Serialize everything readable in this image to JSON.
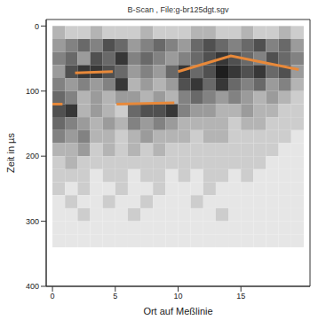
{
  "chart_data": {
    "type": "heatmap",
    "title": "B-Scan , File:g-br125dgt.sgv",
    "x_label": "Ort auf Meßlinie",
    "y_label": "Zeit in µs",
    "xlim": [
      -0.5,
      20.5
    ],
    "xticks": [
      0,
      5,
      10,
      15
    ],
    "ylim": [
      -10,
      400
    ],
    "yticks": [
      0,
      100,
      200,
      300,
      400
    ],
    "grid": false,
    "heatmap": {
      "x_edges": [
        0,
        1,
        2,
        3,
        4,
        5,
        6,
        7,
        8,
        9,
        10,
        11,
        12,
        13,
        14,
        15,
        16,
        17,
        18,
        19,
        20
      ],
      "y_edges": [
        0,
        20,
        40,
        60,
        80,
        100,
        120,
        140,
        160,
        180,
        200,
        220,
        240,
        260,
        280,
        300,
        320,
        340
      ],
      "values": [
        [
          3,
          2,
          2,
          3,
          2,
          2,
          2,
          3,
          2,
          2,
          2,
          3,
          3,
          2,
          2,
          3,
          2,
          2,
          3,
          2
        ],
        [
          4,
          5,
          6,
          5,
          7,
          6,
          4,
          5,
          6,
          5,
          4,
          6,
          7,
          6,
          5,
          6,
          7,
          5,
          6,
          4
        ],
        [
          5,
          6,
          4,
          7,
          6,
          8,
          5,
          6,
          5,
          4,
          5,
          6,
          7,
          8,
          7,
          6,
          5,
          7,
          6,
          5
        ],
        [
          4,
          7,
          8,
          8,
          7,
          6,
          4,
          5,
          4,
          6,
          8,
          6,
          7,
          9,
          8,
          7,
          8,
          6,
          7,
          4
        ],
        [
          5,
          4,
          5,
          4,
          5,
          8,
          3,
          4,
          3,
          4,
          7,
          8,
          6,
          8,
          6,
          5,
          6,
          4,
          5,
          3
        ],
        [
          6,
          5,
          3,
          4,
          3,
          4,
          4,
          3,
          4,
          3,
          5,
          6,
          5,
          4,
          5,
          4,
          3,
          4,
          3,
          2
        ],
        [
          7,
          8,
          3,
          4,
          3,
          2,
          6,
          7,
          7,
          8,
          5,
          4,
          4,
          3,
          3,
          4,
          3,
          3,
          2,
          2
        ],
        [
          6,
          5,
          4,
          3,
          4,
          3,
          5,
          4,
          5,
          4,
          3,
          3,
          3,
          3,
          2,
          3,
          3,
          2,
          2,
          2
        ],
        [
          5,
          4,
          5,
          3,
          3,
          2,
          3,
          4,
          3,
          3,
          3,
          2,
          3,
          3,
          2,
          2,
          2,
          2,
          2,
          1
        ],
        [
          3,
          3,
          4,
          2,
          3,
          2,
          3,
          2,
          3,
          2,
          2,
          2,
          2,
          2,
          2,
          2,
          2,
          2,
          1,
          1
        ],
        [
          2,
          3,
          2,
          2,
          2,
          2,
          2,
          2,
          2,
          2,
          2,
          2,
          2,
          2,
          2,
          2,
          2,
          1,
          1,
          1
        ],
        [
          2,
          2,
          2,
          1,
          2,
          2,
          1,
          2,
          2,
          1,
          2,
          1,
          2,
          2,
          1,
          2,
          1,
          1,
          1,
          1
        ],
        [
          2,
          1,
          2,
          1,
          1,
          2,
          1,
          1,
          2,
          1,
          1,
          1,
          2,
          1,
          1,
          1,
          1,
          1,
          1,
          1
        ],
        [
          1,
          2,
          1,
          1,
          2,
          1,
          1,
          2,
          1,
          1,
          1,
          2,
          1,
          1,
          1,
          1,
          1,
          1,
          1,
          1
        ],
        [
          1,
          1,
          2,
          1,
          1,
          1,
          2,
          1,
          1,
          1,
          1,
          1,
          1,
          2,
          1,
          1,
          1,
          1,
          1,
          1
        ],
        [
          1,
          1,
          1,
          1,
          1,
          1,
          1,
          1,
          1,
          1,
          1,
          1,
          1,
          1,
          1,
          1,
          1,
          1,
          1,
          1
        ],
        [
          1,
          1,
          1,
          1,
          1,
          1,
          1,
          1,
          1,
          1,
          1,
          1,
          1,
          1,
          1,
          1,
          1,
          1,
          1,
          1
        ]
      ]
    },
    "series": [
      {
        "type": "line",
        "color": "#e8893a",
        "line_style": "solid",
        "x": [
          0,
          0.8
        ],
        "values": [
          120,
          120
        ]
      },
      {
        "type": "line",
        "color": "#e8893a",
        "line_style": "solid",
        "x": [
          1.8,
          4.8
        ],
        "values": [
          72,
          70
        ]
      },
      {
        "type": "line",
        "color": "#e8893a",
        "line_style": "solid",
        "x": [
          5.1,
          9.7
        ],
        "values": [
          120,
          118
        ]
      },
      {
        "type": "line",
        "color": "#e8893a",
        "line_style": "solid",
        "x": [
          10,
          14.2,
          19.6
        ],
        "values": [
          70,
          46,
          67
        ]
      }
    ]
  }
}
